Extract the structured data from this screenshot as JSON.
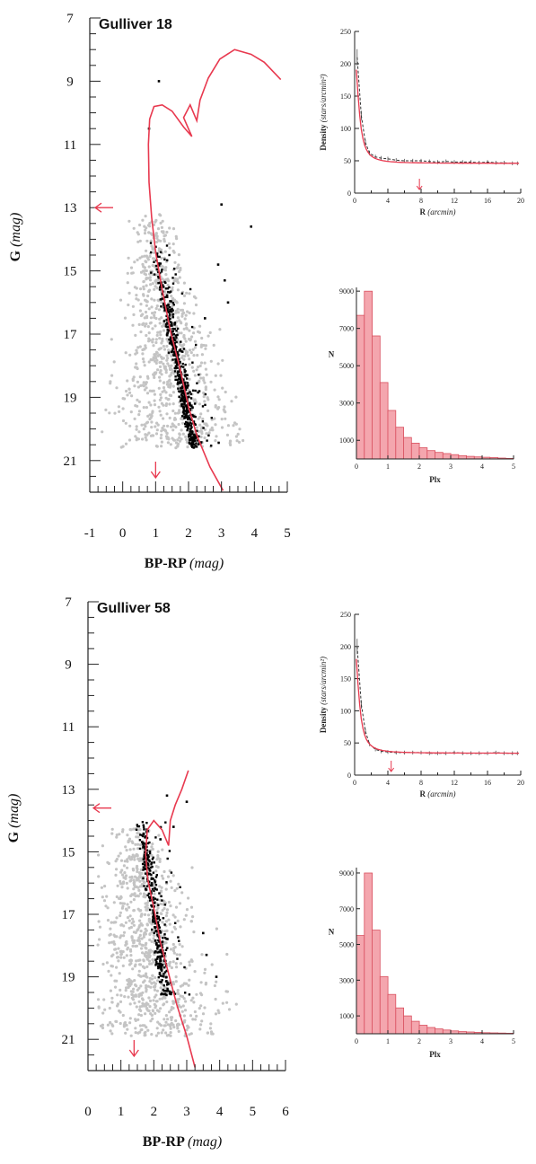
{
  "colors": {
    "isochrone": "#e8394f",
    "member": "#000000",
    "field": "#c4c4c4",
    "hist_fill": "#f4a6ae",
    "hist_edge": "#d9505f",
    "axis": "#222222"
  },
  "panels": [
    {
      "cmd": {
        "title": "Gulliver 18",
        "xlabel_main": "BP-RP",
        "xlabel_unit": "(mag)",
        "ylabel_main": "G",
        "ylabel_unit": "(mag)",
        "xlim": [
          -1,
          5
        ],
        "ylim": [
          22,
          7
        ],
        "xticks": [
          "-1",
          "0",
          "1",
          "2",
          "3",
          "4",
          "5"
        ],
        "yticks": [
          "7",
          "9",
          "11",
          "13",
          "15",
          "17",
          "19",
          "21"
        ],
        "mag_limit_arrow_G": 13,
        "color_limit_arrow": 1.0
      },
      "density": {
        "xlabel_main": "R",
        "xlabel_unit": "(arcmin)",
        "ylabel_main": "Density",
        "ylabel_unit": "(stars/arcmin²)",
        "xticks": [
          "0",
          "4",
          "8",
          "12",
          "16",
          "20"
        ],
        "yticks": [
          "0",
          "50",
          "100",
          "150",
          "200",
          "250"
        ],
        "xlim": [
          0,
          20
        ],
        "ylim": [
          0,
          250
        ],
        "arrow_r": 7.8,
        "r": [
          0.3,
          0.8,
          1.3,
          1.8,
          2.5,
          3.2,
          4,
          5,
          6,
          7,
          8,
          9,
          10,
          11,
          12,
          13,
          14,
          15,
          16,
          17,
          18,
          19,
          19.6
        ],
        "density": [
          210,
          120,
          78,
          62,
          56,
          54,
          53,
          51,
          50,
          50,
          50,
          49,
          48,
          49,
          48,
          48,
          48,
          47,
          48,
          47,
          47,
          46,
          46
        ]
      },
      "hist": {
        "xlabel": "Plx",
        "ylabel": "N",
        "xticks": [
          "0",
          "1",
          "2",
          "3",
          "4",
          "5"
        ],
        "yticks": [
          "1000",
          "3000",
          "5000",
          "7000",
          "9000"
        ],
        "xlim": [
          0,
          5
        ],
        "ylim": [
          0,
          9200
        ],
        "bin_width": 0.25,
        "counts": [
          7700,
          9000,
          6600,
          4100,
          2600,
          1700,
          1150,
          850,
          600,
          450,
          350,
          290,
          230,
          180,
          140,
          110,
          90,
          70,
          50,
          30
        ]
      }
    },
    {
      "cmd": {
        "title": "Gulliver 58",
        "xlabel_main": "BP-RP",
        "xlabel_unit": "(mag)",
        "ylabel_main": "G",
        "ylabel_unit": "(mag)",
        "xlim": [
          0,
          6
        ],
        "ylim": [
          22,
          7
        ],
        "xticks": [
          "0",
          "1",
          "2",
          "3",
          "4",
          "5",
          "6"
        ],
        "yticks": [
          "7",
          "9",
          "11",
          "13",
          "15",
          "17",
          "19",
          "21"
        ],
        "mag_limit_arrow_G": 13.6,
        "color_limit_arrow": 1.4
      },
      "density": {
        "xlabel_main": "R",
        "xlabel_unit": "(arcmin)",
        "ylabel_main": "Density",
        "ylabel_unit": "(stars/arcmin²)",
        "xticks": [
          "0",
          "4",
          "8",
          "12",
          "16",
          "20"
        ],
        "yticks": [
          "0",
          "50",
          "100",
          "150",
          "200",
          "250"
        ],
        "xlim": [
          0,
          20
        ],
        "ylim": [
          0,
          250
        ],
        "arrow_r": 4.4,
        "r": [
          0.3,
          0.8,
          1.3,
          1.8,
          2.5,
          3.2,
          4,
          5,
          6,
          7,
          8,
          9,
          10,
          11,
          12,
          13,
          14,
          15,
          16,
          17,
          18,
          19,
          19.6
        ],
        "density": [
          200,
          110,
          68,
          48,
          40,
          37,
          36,
          35,
          35,
          35,
          35,
          34,
          34,
          34,
          35,
          34,
          34,
          34,
          34,
          35,
          34,
          34,
          34
        ]
      },
      "hist": {
        "xlabel": "Plx",
        "ylabel": "N",
        "xticks": [
          "0",
          "1",
          "2",
          "3",
          "4",
          "5"
        ],
        "yticks": [
          "1000",
          "3000",
          "5000",
          "7000",
          "9000"
        ],
        "xlim": [
          0,
          5
        ],
        "ylim": [
          0,
          9300
        ],
        "bin_width": 0.25,
        "counts": [
          5500,
          9000,
          5800,
          3200,
          2200,
          1450,
          1000,
          700,
          480,
          350,
          270,
          210,
          160,
          120,
          100,
          80,
          60,
          50,
          40,
          30
        ]
      }
    }
  ],
  "chart_data": [
    {
      "type": "scatter",
      "title": "Gulliver 18",
      "xlabel": "BP-RP (mag)",
      "ylabel": "G (mag)",
      "xlim": [
        -1,
        5
      ],
      "ylim": [
        22,
        7
      ],
      "series": [
        {
          "name": "",
          "values": []
        }
      ]
    },
    {
      "type": "line",
      "title": "",
      "xlabel": "R (arcmin)",
      "ylabel": "Density (stars/arcmin²)",
      "xlim": [
        0,
        20
      ],
      "ylim": [
        0,
        250
      ],
      "x": [
        0.3,
        0.8,
        1.3,
        1.8,
        2.5,
        3.2,
        4,
        5,
        6,
        7,
        8,
        9,
        10,
        11,
        12,
        13,
        14,
        15,
        16,
        17,
        18,
        19,
        19.6
      ],
      "values": [
        210,
        120,
        78,
        62,
        56,
        54,
        53,
        51,
        50,
        50,
        50,
        49,
        48,
        49,
        48,
        48,
        48,
        47,
        48,
        47,
        47,
        46,
        46
      ]
    },
    {
      "type": "bar",
      "title": "",
      "xlabel": "Plx",
      "ylabel": "N",
      "xlim": [
        0,
        5
      ],
      "categories": [
        "0.125",
        "0.375",
        "0.625",
        "0.875",
        "1.125",
        "1.375",
        "1.625",
        "1.875",
        "2.125",
        "2.375",
        "2.625",
        "2.875",
        "3.125",
        "3.375",
        "3.625",
        "3.875",
        "4.125",
        "4.375",
        "4.625",
        "4.875"
      ],
      "values": [
        7700,
        9000,
        6600,
        4100,
        2600,
        1700,
        1150,
        850,
        600,
        450,
        350,
        290,
        230,
        180,
        140,
        110,
        90,
        70,
        50,
        30
      ]
    },
    {
      "type": "scatter",
      "title": "Gulliver 58",
      "xlabel": "BP-RP (mag)",
      "ylabel": "G (mag)",
      "xlim": [
        0,
        6
      ],
      "ylim": [
        22,
        7
      ],
      "series": [
        {
          "name": "",
          "values": []
        }
      ]
    },
    {
      "type": "line",
      "title": "",
      "xlabel": "R (arcmin)",
      "ylabel": "Density (stars/arcmin²)",
      "xlim": [
        0,
        20
      ],
      "ylim": [
        0,
        250
      ],
      "x": [
        0.3,
        0.8,
        1.3,
        1.8,
        2.5,
        3.2,
        4,
        5,
        6,
        7,
        8,
        9,
        10,
        11,
        12,
        13,
        14,
        15,
        16,
        17,
        18,
        19,
        19.6
      ],
      "values": [
        200,
        110,
        68,
        48,
        40,
        37,
        36,
        35,
        35,
        35,
        35,
        34,
        34,
        34,
        35,
        34,
        34,
        34,
        34,
        35,
        34,
        34,
        34
      ]
    },
    {
      "type": "bar",
      "title": "",
      "xlabel": "Plx",
      "ylabel": "N",
      "xlim": [
        0,
        5
      ],
      "categories": [
        "0.125",
        "0.375",
        "0.625",
        "0.875",
        "1.125",
        "1.375",
        "1.625",
        "1.875",
        "2.125",
        "2.375",
        "2.625",
        "2.875",
        "3.125",
        "3.375",
        "3.625",
        "3.875",
        "4.125",
        "4.375",
        "4.625",
        "4.875"
      ],
      "values": [
        5500,
        9000,
        5800,
        3200,
        2200,
        1450,
        1000,
        700,
        480,
        350,
        270,
        210,
        160,
        120,
        100,
        80,
        60,
        50,
        40,
        30
      ]
    }
  ]
}
